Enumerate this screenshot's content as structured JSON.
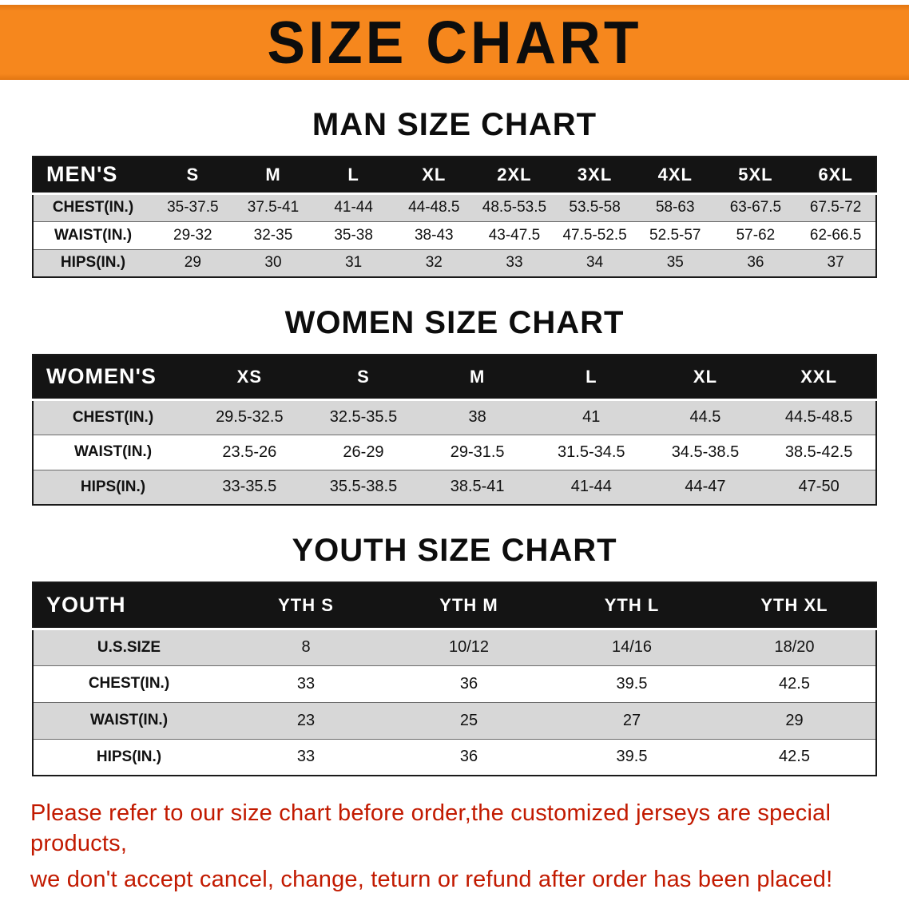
{
  "banner": {
    "title": "SIZE CHART"
  },
  "colors": {
    "banner_bg": "#f6871d",
    "header_bg": "#141414",
    "row_alt": "#d7d7d7",
    "note_red": "#c21a00"
  },
  "sections": [
    {
      "heading": "MAN SIZE CHART",
      "table": {
        "header": [
          "MEN'S",
          "S",
          "M",
          "L",
          "XL",
          "2XL",
          "3XL",
          "4XL",
          "5XL",
          "6XL"
        ],
        "rows": [
          [
            "CHEST(IN.)",
            "35-37.5",
            "37.5-41",
            "41-44",
            "44-48.5",
            "48.5-53.5",
            "53.5-58",
            "58-63",
            "63-67.5",
            "67.5-72"
          ],
          [
            "WAIST(IN.)",
            "29-32",
            "32-35",
            "35-38",
            "38-43",
            "43-47.5",
            "47.5-52.5",
            "52.5-57",
            "57-62",
            "62-66.5"
          ],
          [
            "HIPS(IN.)",
            "29",
            "30",
            "31",
            "32",
            "33",
            "34",
            "35",
            "36",
            "37"
          ]
        ]
      }
    },
    {
      "heading": "WOMEN SIZE CHART",
      "table": {
        "header": [
          "WOMEN'S",
          "XS",
          "S",
          "M",
          "L",
          "XL",
          "XXL"
        ],
        "rows": [
          [
            "CHEST(IN.)",
            "29.5-32.5",
            "32.5-35.5",
            "38",
            "41",
            "44.5",
            "44.5-48.5"
          ],
          [
            "WAIST(IN.)",
            "23.5-26",
            "26-29",
            "29-31.5",
            "31.5-34.5",
            "34.5-38.5",
            "38.5-42.5"
          ],
          [
            "HIPS(IN.)",
            "33-35.5",
            "35.5-38.5",
            "38.5-41",
            "41-44",
            "44-47",
            "47-50"
          ]
        ]
      }
    },
    {
      "heading": "YOUTH SIZE CHART",
      "table": {
        "header": [
          "YOUTH",
          "YTH S",
          "YTH M",
          "YTH L",
          "YTH XL"
        ],
        "rows": [
          [
            "U.S.SIZE",
            "8",
            "10/12",
            "14/16",
            "18/20"
          ],
          [
            "CHEST(IN.)",
            "33",
            "36",
            "39.5",
            "42.5"
          ],
          [
            "WAIST(IN.)",
            "23",
            "25",
            "27",
            "29"
          ],
          [
            "HIPS(IN.)",
            "33",
            "36",
            "39.5",
            "42.5"
          ]
        ]
      }
    }
  ],
  "note": {
    "line1": "Please refer to our size chart before order,the customized jerseys are special products,",
    "line2": "we don't accept cancel, change, teturn or refund after order has been placed!"
  }
}
